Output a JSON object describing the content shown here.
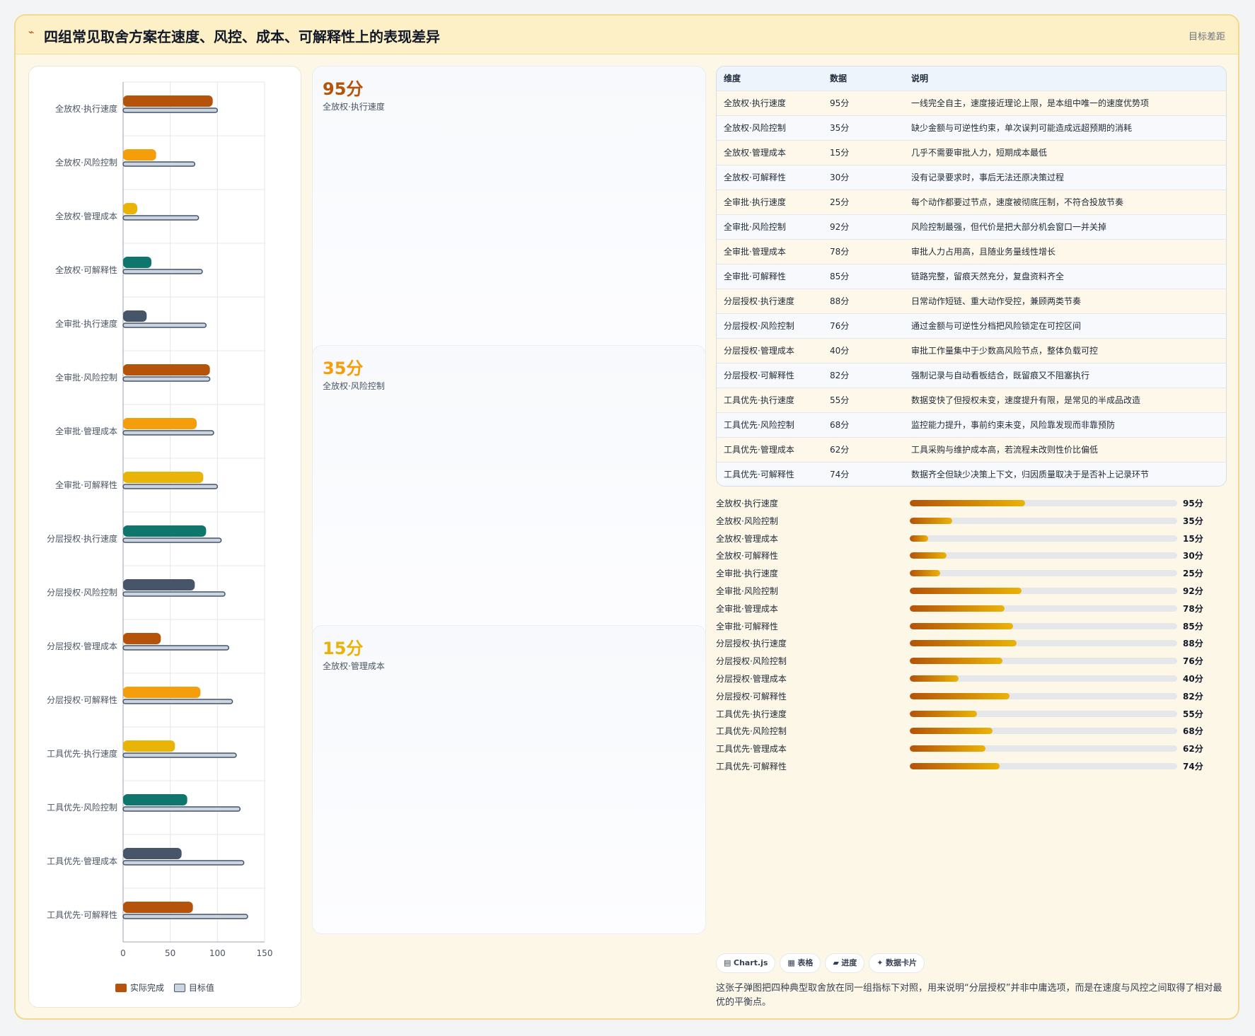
{
  "header": {
    "icon": "chart-line-icon",
    "title": "四组常见取舍方案在速度、风控、成本、可解释性上的表现差异",
    "tag": "目标差距"
  },
  "chart_data": {
    "type": "bar",
    "orientation": "horizontal",
    "categories": [
      "全放权·执行速度",
      "全放权·风险控制",
      "全放权·管理成本",
      "全放权·可解释性",
      "全审批·执行速度",
      "全审批·风险控制",
      "全审批·管理成本",
      "全审批·可解释性",
      "分层授权·执行速度",
      "分层授权·风险控制",
      "分层授权·管理成本",
      "分层授权·可解释性",
      "工具优先·执行速度",
      "工具优先·风险控制",
      "工具优先·管理成本",
      "工具优先·可解释性"
    ],
    "series": [
      {
        "name": "实际完成",
        "values": [
          95,
          35,
          15,
          30,
          25,
          92,
          78,
          85,
          88,
          76,
          40,
          82,
          55,
          68,
          62,
          74
        ],
        "colors": [
          "#b45309",
          "#f59e0b",
          "#eab308",
          "#0f766e",
          "#475569",
          "#b45309",
          "#f59e0b",
          "#eab308",
          "#0f766e",
          "#475569",
          "#b45309",
          "#f59e0b",
          "#eab308",
          "#0f766e",
          "#475569",
          "#b45309"
        ]
      },
      {
        "name": "目标值",
        "values": [
          100,
          76,
          80,
          84,
          88,
          92,
          96,
          100,
          104,
          108,
          112,
          116,
          120,
          124,
          128,
          132
        ],
        "color": "#cbd5e1",
        "border": "#475569"
      }
    ],
    "xlim": [
      0,
      150
    ],
    "xticks": [
      0,
      50,
      100,
      150
    ],
    "legend": "bottom"
  },
  "stat_cards": [
    {
      "value": "95分",
      "label": "全放权·执行速度",
      "color": "#b45309"
    },
    {
      "value": "35分",
      "label": "全放权·风险控制",
      "color": "#f59e0b"
    },
    {
      "value": "15分",
      "label": "全放权·管理成本",
      "color": "#eab308"
    }
  ],
  "table": {
    "headers": [
      "维度",
      "数据",
      "说明"
    ],
    "rows": [
      [
        "全放权·执行速度",
        "95分",
        "一线完全自主，速度接近理论上限，是本组中唯一的速度优势项"
      ],
      [
        "全放权·风险控制",
        "35分",
        "缺少金额与可逆性约束，单次误判可能造成远超预期的消耗"
      ],
      [
        "全放权·管理成本",
        "15分",
        "几乎不需要审批人力，短期成本最低"
      ],
      [
        "全放权·可解释性",
        "30分",
        "没有记录要求时，事后无法还原决策过程"
      ],
      [
        "全审批·执行速度",
        "25分",
        "每个动作都要过节点，速度被彻底压制，不符合投放节奏"
      ],
      [
        "全审批·风险控制",
        "92分",
        "风险控制最强，但代价是把大部分机会窗口一并关掉"
      ],
      [
        "全审批·管理成本",
        "78分",
        "审批人力占用高，且随业务量线性增长"
      ],
      [
        "全审批·可解释性",
        "85分",
        "链路完整，留痕天然充分，复盘资料齐全"
      ],
      [
        "分层授权·执行速度",
        "88分",
        "日常动作短链、重大动作受控，兼顾两类节奏"
      ],
      [
        "分层授权·风险控制",
        "76分",
        "通过金额与可逆性分档把风险锁定在可控区间"
      ],
      [
        "分层授权·管理成本",
        "40分",
        "审批工作量集中于少数高风险节点，整体负载可控"
      ],
      [
        "分层授权·可解释性",
        "82分",
        "强制记录与自动看板结合，既留痕又不阻塞执行"
      ],
      [
        "工具优先·执行速度",
        "55分",
        "数据变快了但授权未变，速度提升有限，是常见的半成品改造"
      ],
      [
        "工具优先·风险控制",
        "68分",
        "监控能力提升，事前约束未变，风险靠发现而非靠预防"
      ],
      [
        "工具优先·管理成本",
        "62分",
        "工具采购与维护成本高，若流程未改则性价比偏低"
      ],
      [
        "工具优先·可解释性",
        "74分",
        "数据齐全但缺少决策上下文，归因质量取决于是否补上记录环节"
      ]
    ]
  },
  "progress": [
    {
      "label": "全放权·执行速度",
      "value": "95分",
      "pct": 95
    },
    {
      "label": "全放权·风险控制",
      "value": "35分",
      "pct": 35
    },
    {
      "label": "全放权·管理成本",
      "value": "15分",
      "pct": 15
    },
    {
      "label": "全放权·可解释性",
      "value": "30分",
      "pct": 30
    },
    {
      "label": "全审批·执行速度",
      "value": "25分",
      "pct": 25
    },
    {
      "label": "全审批·风险控制",
      "value": "92分",
      "pct": 92
    },
    {
      "label": "全审批·管理成本",
      "value": "78分",
      "pct": 78
    },
    {
      "label": "全审批·可解释性",
      "value": "85分",
      "pct": 85
    },
    {
      "label": "分层授权·执行速度",
      "value": "88分",
      "pct": 88
    },
    {
      "label": "分层授权·风险控制",
      "value": "76分",
      "pct": 76
    },
    {
      "label": "分层授权·管理成本",
      "value": "40分",
      "pct": 40
    },
    {
      "label": "分层授权·可解释性",
      "value": "82分",
      "pct": 82
    },
    {
      "label": "工具优先·执行速度",
      "value": "55分",
      "pct": 55
    },
    {
      "label": "工具优先·风险控制",
      "value": "68分",
      "pct": 68
    },
    {
      "label": "工具优先·管理成本",
      "value": "62分",
      "pct": 62
    },
    {
      "label": "工具优先·可解释性",
      "value": "74分",
      "pct": 74
    }
  ],
  "progress_max": 220,
  "chips": [
    {
      "icon": "▤",
      "label": "Chart.js"
    },
    {
      "icon": "▦",
      "label": "表格"
    },
    {
      "icon": "▰",
      "label": "进度"
    },
    {
      "icon": "✦",
      "label": "数据卡片"
    }
  ],
  "footnote": "这张子弹图把四种典型取舍放在同一组指标下对照，用来说明“分层授权”并非中庸选项，而是在速度与风控之间取得了相对最优的平衡点。"
}
